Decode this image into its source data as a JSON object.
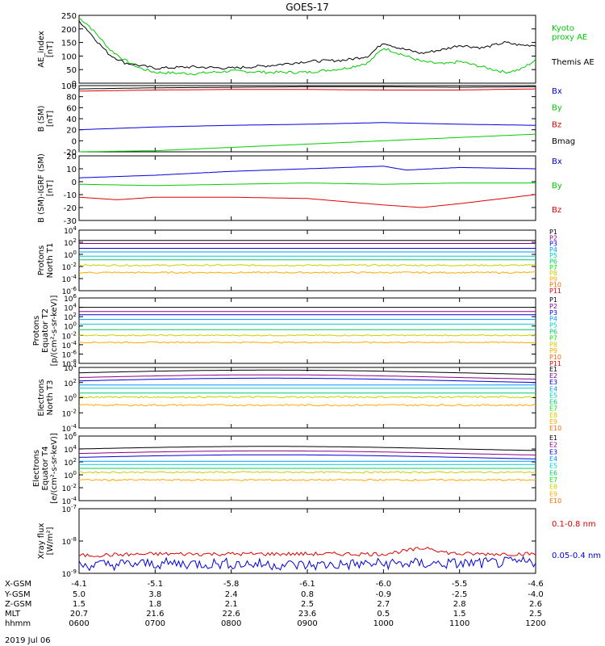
{
  "title": "GOES-17",
  "date_label": "2019 Jul 06",
  "footer": {
    "row_labels": [
      "X-GSM",
      "Y-GSM",
      "Z-GSM",
      "MLT",
      "hhmm"
    ],
    "columns": [
      [
        "-4.1",
        "5.0",
        "1.5",
        "20.7",
        "0600"
      ],
      [
        "-5.1",
        "3.8",
        "1.8",
        "21.6",
        "0700"
      ],
      [
        "-5.8",
        "2.4",
        "2.1",
        "22.6",
        "0800"
      ],
      [
        "-6.1",
        "0.8",
        "2.5",
        "23.6",
        "0900"
      ],
      [
        "-6.0",
        "-0.9",
        "2.7",
        "0.5",
        "1000"
      ],
      [
        "-5.5",
        "-2.5",
        "2.8",
        "1.5",
        "1100"
      ],
      [
        "-4.6",
        "-4.0",
        "2.6",
        "2.5",
        "1200"
      ]
    ]
  },
  "colors": {
    "black": "#000000",
    "green": "#00cc00",
    "blue": "#0000dd",
    "red": "#dd0000",
    "channels": [
      "#000000",
      "#8b0088",
      "#0000dd",
      "#0099ff",
      "#00cccc",
      "#00cc66",
      "#00ee00",
      "#cccc00",
      "#ffaa00",
      "#ff6600",
      "#dd0000"
    ]
  },
  "chart_data": [
    {
      "type": "line",
      "id": "ae",
      "ylabel": "AE_index\n[nT]",
      "yticks": [
        "0",
        "50",
        "100",
        "150",
        "200",
        "250"
      ],
      "ylim": [
        0,
        250
      ],
      "x_hours": [
        6.0,
        12.0
      ],
      "series": [
        {
          "name": "Kyoto proxy AE",
          "color": "#00cc00",
          "x": [
            6.0,
            6.1,
            6.25,
            6.4,
            6.6,
            6.8,
            7.0,
            7.5,
            8.0,
            8.5,
            9.0,
            9.5,
            9.8,
            10.0,
            10.2,
            10.5,
            10.8,
            11.0,
            11.3,
            11.6,
            11.8,
            12.0
          ],
          "y": [
            240,
            220,
            175,
            125,
            85,
            55,
            40,
            35,
            45,
            40,
            40,
            55,
            75,
            130,
            110,
            80,
            70,
            80,
            60,
            40,
            50,
            85
          ]
        },
        {
          "name": "Themis AE",
          "color": "#000000",
          "x": [
            6.0,
            6.1,
            6.25,
            6.4,
            6.6,
            6.8,
            7.0,
            7.5,
            8.0,
            8.5,
            9.0,
            9.5,
            9.8,
            10.0,
            10.2,
            10.5,
            10.8,
            11.0,
            11.3,
            11.6,
            11.8,
            12.0
          ],
          "y": [
            230,
            200,
            150,
            105,
            75,
            65,
            55,
            60,
            55,
            65,
            80,
            85,
            100,
            150,
            130,
            110,
            125,
            140,
            130,
            150,
            140,
            140
          ]
        }
      ]
    },
    {
      "type": "line",
      "id": "bsm",
      "ylabel": "B (SM)\n[nT]",
      "yticks": [
        "-20",
        "0",
        "20",
        "40",
        "60",
        "80",
        "100"
      ],
      "ylim": [
        -20,
        100
      ],
      "x_hours": [
        6.0,
        12.0
      ],
      "series": [
        {
          "name": "Bx",
          "color": "#0000dd",
          "x": [
            6,
            7,
            8,
            9,
            10,
            11,
            12
          ],
          "y": [
            20,
            25,
            28,
            30,
            33,
            30,
            28
          ]
        },
        {
          "name": "By",
          "color": "#00cc00",
          "x": [
            6,
            7,
            8,
            9,
            10,
            11,
            12
          ],
          "y": [
            -20,
            -18,
            -12,
            -6,
            0,
            6,
            12
          ]
        },
        {
          "name": "Bz",
          "color": "#dd0000",
          "x": [
            6,
            7,
            8,
            9,
            10,
            11,
            12
          ],
          "y": [
            90,
            92,
            93,
            93,
            92,
            92,
            94
          ]
        },
        {
          "name": "Bmag",
          "color": "#000000",
          "x": [
            6,
            7,
            8,
            9,
            10,
            11,
            12
          ],
          "y": [
            94,
            96,
            97,
            98,
            98,
            97,
            98
          ]
        }
      ]
    },
    {
      "type": "line",
      "id": "bigrf",
      "ylabel": "B (SM)-IGRF (SM)\n[nT]",
      "yticks": [
        "-30",
        "-20",
        "-10",
        "0",
        "10",
        "20"
      ],
      "ylim": [
        -30,
        20
      ],
      "x_hours": [
        6.0,
        12.0
      ],
      "series": [
        {
          "name": "Bx",
          "color": "#0000dd",
          "x": [
            6,
            7,
            8,
            9,
            10,
            10.3,
            11,
            12
          ],
          "y": [
            3,
            5,
            8,
            10,
            12,
            9,
            11,
            10
          ]
        },
        {
          "name": "By",
          "color": "#00cc00",
          "x": [
            6,
            7,
            8,
            9,
            10,
            11,
            12
          ],
          "y": [
            -2,
            -3,
            -2,
            -1,
            -2,
            -1,
            -1
          ]
        },
        {
          "name": "Bz",
          "color": "#dd0000",
          "x": [
            6,
            6.5,
            7,
            8,
            9,
            10,
            10.5,
            11,
            12
          ],
          "y": [
            -12,
            -14,
            -12,
            -12,
            -13,
            -18,
            -20,
            -17,
            -10
          ]
        }
      ]
    },
    {
      "type": "line",
      "id": "protons_t1",
      "ylabel": "Protons\nNorth T1",
      "yticks": [
        "10^-6",
        "10^-4",
        "10^-2",
        "10^0",
        "10^2",
        "10^4"
      ],
      "ylim": [
        -6,
        4
      ],
      "log": true,
      "x_hours": [
        6.0,
        12.0
      ],
      "series": [
        {
          "name": "P1",
          "color": "#000000",
          "y_log": 2.3
        },
        {
          "name": "P2",
          "color": "#8b0088",
          "y_log": 1.8
        },
        {
          "name": "P3",
          "color": "#0000dd",
          "y_log": 1.0
        },
        {
          "name": "P4",
          "color": "#0099ff",
          "y_log": 0.4
        },
        {
          "name": "P5",
          "color": "#00cccc",
          "y_log": -0.3
        },
        {
          "name": "P6",
          "color": "#00cc66",
          "y_log": -0.9
        },
        {
          "name": "P7",
          "color": "#cccc00",
          "y_log": -1.8
        },
        {
          "name": "P8",
          "color": "#ffaa00",
          "y_log": -3.0
        }
      ],
      "legend": [
        "P1",
        "P2",
        "P3",
        "P4",
        "P5",
        "P6",
        "P7",
        "P8",
        "P9",
        "P10",
        "P11"
      ]
    },
    {
      "type": "line",
      "id": "protons_t2",
      "ylabel": "Protons\nEquator T2\n[p/(cm²-s-sr-keV)]",
      "yticks": [
        "10^-8",
        "10^-6",
        "10^-4",
        "10^-2",
        "10^0",
        "10^2",
        "10^4",
        "10^6"
      ],
      "ylim": [
        -8,
        6
      ],
      "log": true,
      "x_hours": [
        6.0,
        12.0
      ],
      "series": [
        {
          "name": "P1",
          "color": "#000000",
          "y_log": 4.0
        },
        {
          "name": "P2",
          "color": "#8b0088",
          "y_log": 3.1
        },
        {
          "name": "P3",
          "color": "#0000dd",
          "y_log": 2.4
        },
        {
          "name": "P4",
          "color": "#0099ff",
          "y_log": 1.4
        },
        {
          "name": "P5",
          "color": "#00cccc",
          "y_log": 0.4
        },
        {
          "name": "P6",
          "color": "#00cc66",
          "y_log": -0.8
        },
        {
          "name": "P7",
          "color": "#cccc00",
          "y_log": -2.0
        },
        {
          "name": "P8",
          "color": "#ffaa00",
          "y_log": -3.5
        }
      ],
      "legend": [
        "P1",
        "P2",
        "P3",
        "P4",
        "P5",
        "P6",
        "P7",
        "P8",
        "P9",
        "P10",
        "P11"
      ]
    },
    {
      "type": "line",
      "id": "electrons_t3",
      "ylabel": "Electrons\nNorth T3",
      "yticks": [
        "10^-4",
        "10^-2",
        "10^0",
        "10^2",
        "10^4"
      ],
      "ylim": [
        -4,
        5
      ],
      "log": true,
      "x_hours": [
        6.0,
        12.0
      ],
      "series": [
        {
          "name": "E1",
          "color": "#000000",
          "y_log": 4.2
        },
        {
          "name": "E2",
          "color": "#8b0088",
          "y_log": 3.5
        },
        {
          "name": "E3",
          "color": "#0000dd",
          "y_log": 3.0
        },
        {
          "name": "E4",
          "color": "#0099ff",
          "y_log": 2.4
        },
        {
          "name": "E5",
          "color": "#00cccc",
          "y_log": 1.9
        },
        {
          "name": "E6",
          "color": "#00cc66",
          "y_log": 1.2
        },
        {
          "name": "E7",
          "color": "#cccc00",
          "y_log": 0.6
        },
        {
          "name": "E8",
          "color": "#ffaa00",
          "y_log": -0.6
        }
      ],
      "legend": [
        "E1",
        "E2",
        "E3",
        "E4",
        "E5",
        "E6",
        "E7",
        "E8",
        "E9",
        "E10"
      ]
    },
    {
      "type": "line",
      "id": "electrons_t4",
      "ylabel": "Electrons\nEquator T4\n[e/(cm²-s-sr-keV)]",
      "yticks": [
        "10^-4",
        "10^-2",
        "10^0",
        "10^2",
        "10^4",
        "10^6"
      ],
      "ylim": [
        -4,
        6
      ],
      "log": true,
      "x_hours": [
        6.0,
        12.0
      ],
      "series": [
        {
          "name": "E1",
          "color": "#000000",
          "y_log": 4.0
        },
        {
          "name": "E2",
          "color": "#8b0088",
          "y_log": 3.3
        },
        {
          "name": "E3",
          "color": "#0000dd",
          "y_log": 2.7
        },
        {
          "name": "E4",
          "color": "#0099ff",
          "y_log": 2.1
        },
        {
          "name": "E5",
          "color": "#00cccc",
          "y_log": 1.6
        },
        {
          "name": "E6",
          "color": "#00cc66",
          "y_log": 1.0
        },
        {
          "name": "E7",
          "color": "#cccc00",
          "y_log": 0.4
        },
        {
          "name": "E8",
          "color": "#ffaa00",
          "y_log": -0.8
        }
      ],
      "legend": [
        "E1",
        "E2",
        "E3",
        "E4",
        "E5",
        "E6",
        "E7",
        "E8",
        "E9",
        "E10"
      ]
    },
    {
      "type": "line",
      "id": "xray",
      "ylabel": "Xray flux\n[W/m²]",
      "yticks": [
        "10^-9",
        "10^-8",
        "10^-7"
      ],
      "ylim": [
        -9,
        -7
      ],
      "log": true,
      "x_hours": [
        6.0,
        12.0
      ],
      "series": [
        {
          "name": "0.1-0.8 nm",
          "color": "#dd0000",
          "x": [
            6,
            7,
            8,
            9,
            10,
            10.6,
            10.8,
            11,
            12
          ],
          "y_log": [
            -8.45,
            -8.4,
            -8.4,
            -8.4,
            -8.4,
            -8.2,
            -8.35,
            -8.4,
            -8.4
          ]
        },
        {
          "name": "0.05-0.4 nm",
          "color": "#0000dd",
          "x": [
            6,
            7,
            8,
            9,
            10,
            11,
            12
          ],
          "y_log": [
            -8.75,
            -8.7,
            -8.7,
            -8.75,
            -8.7,
            -8.7,
            -8.65
          ]
        }
      ]
    }
  ],
  "legends": {
    "ae": [
      {
        "text": "Kyoto",
        "color": "#00cc00"
      },
      {
        "text": "proxy AE",
        "color": "#00cc00"
      },
      {
        "text": "Themis AE",
        "color": "#000000"
      }
    ],
    "bsm": [
      {
        "text": "Bx",
        "color": "#0000dd"
      },
      {
        "text": "By",
        "color": "#00cc00"
      },
      {
        "text": "Bz",
        "color": "#dd0000"
      },
      {
        "text": "Bmag",
        "color": "#000000"
      }
    ],
    "bigrf": [
      {
        "text": "Bx",
        "color": "#0000dd"
      },
      {
        "text": "By",
        "color": "#00cc00"
      },
      {
        "text": "Bz",
        "color": "#dd0000"
      }
    ],
    "xray": [
      {
        "text": "0.1-0.8 nm",
        "color": "#dd0000"
      },
      {
        "text": "0.05-0.4 nm",
        "color": "#0000dd"
      }
    ]
  }
}
